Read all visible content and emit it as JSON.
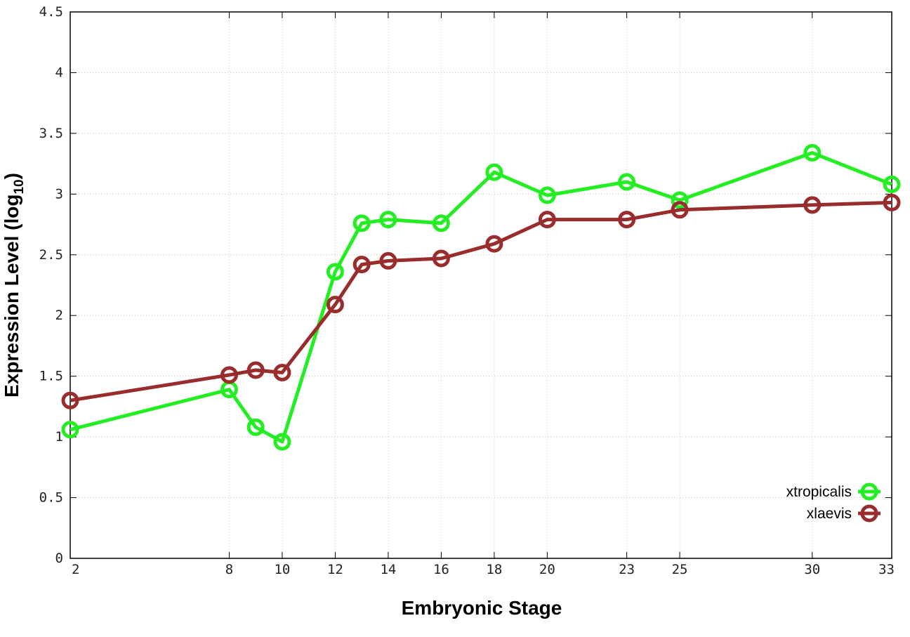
{
  "chart_data": {
    "type": "line",
    "xlabel": "Embryonic Stage",
    "ylabel_main": "Expression Level (log",
    "ylabel_sub": "10",
    "ylabel_close": ")",
    "x": [
      2,
      8,
      9,
      10,
      12,
      13,
      14,
      16,
      18,
      20,
      23,
      25,
      30,
      33
    ],
    "x_ticks": [
      2,
      8,
      10,
      12,
      14,
      16,
      18,
      20,
      23,
      25,
      30,
      33
    ],
    "y_ticks": [
      0,
      0.5,
      1,
      1.5,
      2,
      2.5,
      3,
      3.5,
      4,
      4.5
    ],
    "y_tick_labels": [
      "0",
      "0.5",
      "1",
      "1.5",
      "2",
      "2.5",
      "3",
      "3.5",
      "4",
      "4.5"
    ],
    "xlim": [
      2,
      33
    ],
    "ylim": [
      0,
      4.5
    ],
    "grid": true,
    "legend_position": "bottom-right",
    "series": [
      {
        "name": "xtropicalis",
        "color": "#22ee22",
        "values": [
          1.06,
          1.39,
          1.08,
          0.96,
          2.36,
          2.76,
          2.79,
          2.76,
          3.18,
          2.99,
          3.1,
          2.95,
          3.34,
          3.08
        ]
      },
      {
        "name": "xlaevis",
        "color": "#992c2c",
        "values": [
          1.3,
          1.51,
          1.55,
          1.53,
          2.09,
          2.42,
          2.45,
          2.47,
          2.59,
          2.79,
          2.79,
          2.87,
          2.91,
          2.93
        ]
      }
    ]
  }
}
